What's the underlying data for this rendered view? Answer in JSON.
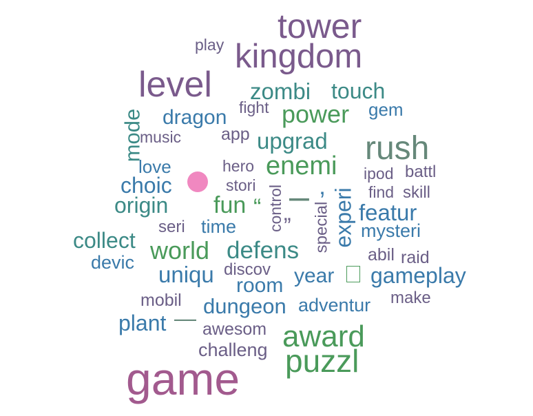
{
  "colors": {
    "purple": "#7a5a8c",
    "darkpurple": "#6a5e86",
    "teal": "#3c8a86",
    "green": "#4a9a5a",
    "blue": "#3a7aaa",
    "grayblue": "#5a6a94",
    "sage": "#66887a",
    "magenta": "#a25a8e",
    "pink": "#f088c0"
  },
  "icons": {
    "dot": "pink-dot",
    "box": "empty-box"
  },
  "words": {
    "tower": "tower",
    "kingdom": "kingdom",
    "play": "play",
    "level": "level",
    "zombi": "zombi",
    "touch": "touch",
    "fight": "fight",
    "gem": "gem",
    "dragon": "dragon",
    "power": "power",
    "mode": "mode",
    "music": "music",
    "app": "app",
    "upgrad": "upgrad",
    "rush": "rush",
    "love": "love",
    "hero": "hero",
    "enemi": "enemi",
    "ipod": "ipod",
    "battl": "battl",
    "choic": "choic",
    "stori": "stori",
    "control": "control",
    "dash_mid": "–",
    "comma": "‚",
    "experi": "experi",
    "find": "find",
    "skill": "skill",
    "origin": "origin",
    "fun": "fun",
    "quote_open": "“",
    "special": "special",
    "featur": "featur",
    "seri": "seri",
    "time": "time",
    "quote_close": "”",
    "mysteri": "mysteri",
    "collect": "collect",
    "world": "world",
    "defens": "defens",
    "abil": "abil",
    "raid": "raid",
    "devic": "devic",
    "discov": "discov",
    "uniqu": "uniqu",
    "room": "room",
    "year": "year",
    "gameplay": "gameplay",
    "mobil": "mobil",
    "dungeon": "dungeon",
    "adventur": "adventur",
    "make": "make",
    "plant": "plant",
    "dash_long": "—",
    "awesom": "awesom",
    "award": "award",
    "challeng": "challeng",
    "puzzl": "puzzl",
    "game": "game"
  }
}
